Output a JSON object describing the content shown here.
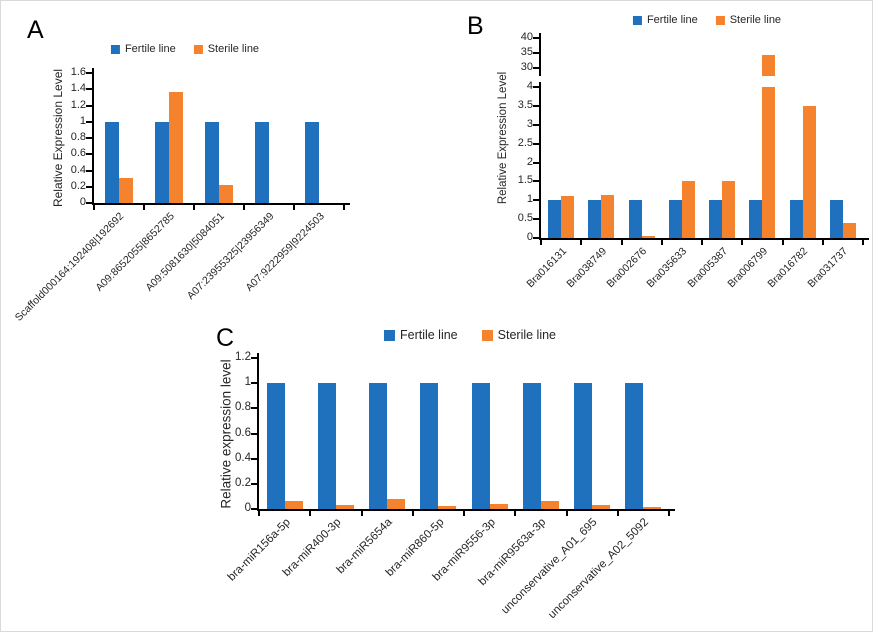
{
  "figure_legend": {
    "fertile": "Fertile line",
    "sterile": "Sterile line"
  },
  "colors": {
    "fertile_bar": "#1F71BE",
    "sterile_bar": "#F5822C",
    "axis": "#000000",
    "text": "#262626"
  },
  "chart_data": [
    {
      "panel": "A",
      "type": "bar",
      "title": "",
      "ylabel": "Relative Expression Level",
      "xlabel": "",
      "legend_position": "top",
      "grid": false,
      "categories": [
        "Scaffold000164:192408|192692",
        "A09:8652055|8652785",
        "A09:5081630|5084051",
        "A07:23955325|23956349",
        "A07:9222959|9224503"
      ],
      "series": [
        {
          "name": "Fertile line",
          "color": "#1F71BE",
          "values": [
            1,
            1,
            1,
            1,
            1
          ]
        },
        {
          "name": "Sterile line",
          "color": "#F5822C",
          "values": [
            0.31,
            1.37,
            0.22,
            0,
            0
          ]
        }
      ],
      "ylim": [
        0,
        1.6
      ],
      "yticks": [
        0,
        0.2,
        0.4,
        0.6,
        0.8,
        1,
        1.2,
        1.4,
        1.6
      ]
    },
    {
      "panel": "B",
      "type": "bar",
      "title": "",
      "ylabel": "Relative Expression Level",
      "xlabel": "",
      "legend_position": "top",
      "grid": false,
      "broken_axis": true,
      "categories": [
        "Bra016131",
        "Bra038749",
        "Bra002676",
        "Bra035633",
        "Bra005387",
        "Bra006799",
        "Bra016782",
        "Bra031737"
      ],
      "series": [
        {
          "name": "Fertile line",
          "color": "#1F71BE",
          "values": [
            1,
            1,
            1,
            1,
            1,
            1,
            1,
            1
          ]
        },
        {
          "name": "Sterile line",
          "color": "#F5822C",
          "values": [
            1.1,
            1.15,
            0.05,
            1.5,
            1.51,
            34.5,
            3.5,
            0.4
          ]
        }
      ],
      "axis_segments": [
        {
          "ylim": [
            27.5,
            40
          ],
          "yticks": [
            30,
            35,
            40
          ]
        },
        {
          "ylim": [
            0,
            4
          ],
          "yticks": [
            0,
            0.5,
            1,
            1.5,
            2,
            2.5,
            3,
            3.5,
            4
          ]
        }
      ]
    },
    {
      "panel": "C",
      "type": "bar",
      "title": "",
      "ylabel": "Relative expression level",
      "xlabel": "",
      "legend_position": "top",
      "grid": false,
      "categories": [
        "bra-miR156a-5p",
        "bra-miR400-3p",
        "bra-miR5654a",
        "bra-miR860-5p",
        "bra-miR9556-3p",
        "bra-miR9563a-3p",
        "unconservative_A01_695",
        "unconservative_A02_5092"
      ],
      "series": [
        {
          "name": "Fertile line",
          "color": "#1F71BE",
          "values": [
            1,
            1,
            1,
            1,
            1,
            1,
            1,
            1
          ]
        },
        {
          "name": "Sterile line",
          "color": "#F5822C",
          "values": [
            0.06,
            0.035,
            0.08,
            0.02,
            0.04,
            0.06,
            0.03,
            0.015
          ]
        }
      ],
      "ylim": [
        0,
        1.2
      ],
      "yticks": [
        0,
        0.2,
        0.4,
        0.6,
        0.8,
        1,
        1.2
      ]
    }
  ]
}
